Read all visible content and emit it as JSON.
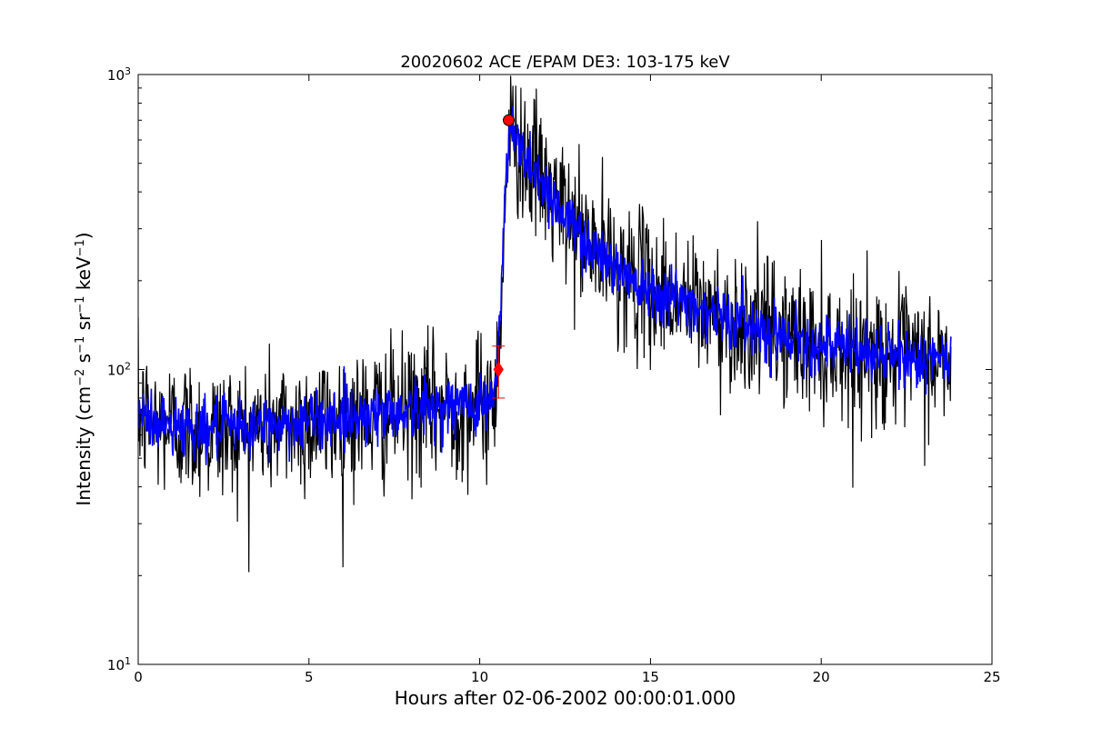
{
  "chart_data": {
    "type": "line",
    "title": "20020602 ACE /EPAM DE3: 103-175 keV",
    "xlabel": "Hours after 02-06-2002 00:00:01.000",
    "ylabel_parts": {
      "prefix": "Intensity (cm",
      "exp1": "−2",
      "mid1": " s",
      "exp2": "−1",
      "mid2": " sr",
      "exp3": "−1",
      "mid3": " keV",
      "exp4": "−1",
      "suffix": ")"
    },
    "xlim": [
      0,
      25
    ],
    "ylim": [
      10,
      1000
    ],
    "yscale": "log",
    "xticks": [
      0,
      5,
      10,
      15,
      20,
      25
    ],
    "xtick_labels": [
      "0",
      "5",
      "10",
      "15",
      "20",
      "25"
    ],
    "yticks": [
      10,
      100,
      1000
    ],
    "ytick_labels": [
      {
        "base": "10",
        "exp": "1"
      },
      {
        "base": "10",
        "exp": "2"
      },
      {
        "base": "10",
        "exp": "3"
      }
    ],
    "grid": false,
    "legend": "none",
    "profile": {
      "x": [
        0,
        0.5,
        1,
        2,
        3,
        4,
        5,
        6,
        7,
        8,
        9,
        10,
        10.4,
        10.5,
        10.6,
        10.7,
        10.8,
        10.9,
        11.2,
        11.6,
        12,
        12.5,
        13,
        14,
        15,
        16,
        17,
        18,
        19,
        20,
        21,
        22,
        23,
        23.8
      ],
      "raw_y": [
        70,
        65,
        65,
        62,
        62,
        65,
        66,
        68,
        70,
        72,
        74,
        76,
        78,
        95,
        150,
        280,
        500,
        640,
        560,
        480,
        400,
        330,
        280,
        220,
        190,
        170,
        150,
        140,
        130,
        120,
        115,
        110,
        108,
        105
      ],
      "smooth_y": [
        70,
        66,
        65,
        63,
        63,
        65,
        67,
        69,
        71,
        73,
        75,
        77,
        79,
        96,
        155,
        290,
        510,
        640,
        570,
        480,
        400,
        330,
        280,
        220,
        190,
        170,
        152,
        141,
        131,
        121,
        116,
        111,
        108,
        105
      ]
    },
    "series": [
      {
        "color": "#000000",
        "noise_sigma": 0.12,
        "step_hours": 0.0167
      },
      {
        "color": "#0000ff",
        "noise_sigma": 0.05,
        "step_hours": 0.0167
      }
    ],
    "markers": [
      {
        "shape": "circle",
        "x": 10.85,
        "y": 700,
        "color": "#ff0000"
      },
      {
        "shape": "diamond",
        "x": 10.55,
        "y": 100,
        "color": "#ff0000",
        "error_low": 80,
        "error_high": 120
      }
    ]
  }
}
